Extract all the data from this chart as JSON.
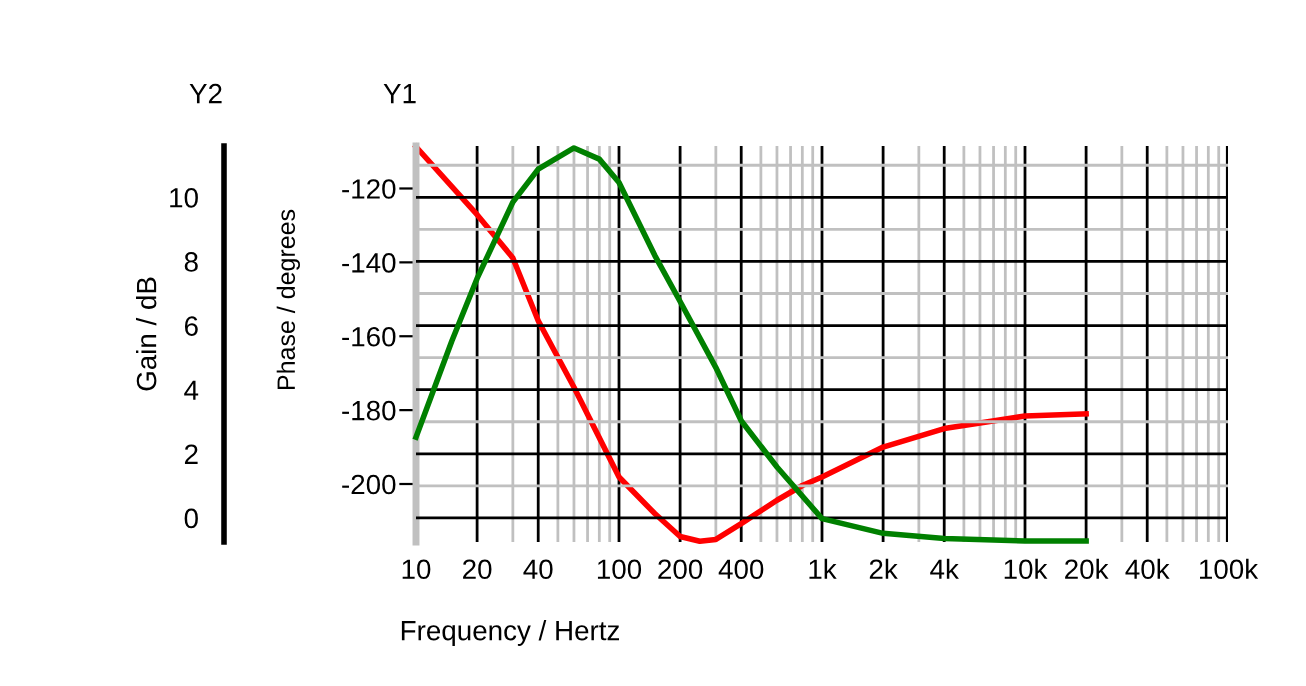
{
  "chart_data": {
    "type": "line",
    "xlabel": "Frequency / Hertz",
    "ylabel": "Phase / degrees",
    "y2label": "Gain / dB",
    "annotations": [
      "Y2",
      "Y1"
    ],
    "log": "x",
    "xlim": [
      10,
      100000
    ],
    "xticks": [
      10,
      20,
      40,
      100,
      200,
      400,
      {
        "value": 1000,
        "label": "1k"
      },
      {
        "value": 2000,
        "label": "2k"
      },
      {
        "value": 4000,
        "label": "4k"
      },
      {
        "value": 10000,
        "label": "10k"
      },
      {
        "value": 20000,
        "label": "20k"
      },
      {
        "value": 40000,
        "label": "40k"
      },
      {
        "value": 100000,
        "label": "100k"
      }
    ],
    "ylim": [
      -215.7,
      -108.5
    ],
    "yticks": [
      -120,
      -140,
      -160,
      -180,
      -200
    ],
    "y2lim": [
      -0.75,
      11.6
    ],
    "y2ticks": [
      0,
      2,
      4,
      6,
      8,
      10
    ],
    "grid": true,
    "legend": false,
    "line_style": "solid",
    "series": [
      {
        "color": "#ff0000",
        "x": [
          10,
          20,
          30,
          40,
          60,
          100,
          150,
          200,
          250,
          300,
          400,
          600,
          800,
          1000,
          2000,
          4000,
          10000,
          20000
        ],
        "values": [
          -108.7,
          -127.1,
          -138.8,
          -155.8,
          -173.8,
          -198.1,
          -208,
          -214.2,
          -215.5,
          -215,
          -210.7,
          -204.4,
          -200.4,
          -198.1,
          -190,
          -185,
          -181.6,
          -181
        ]
      },
      {
        "color": "#008000",
        "axis": "y2",
        "x": [
          10,
          15,
          20,
          30,
          40,
          60,
          80,
          100,
          150,
          200,
          300,
          400,
          600,
          1000,
          2000,
          4000,
          10000,
          20000
        ],
        "values": [
          2.52,
          5.51,
          7.47,
          9.85,
          10.88,
          11.54,
          11.19,
          10.46,
          8.19,
          6.75,
          4.69,
          3.03,
          1.59,
          -0.02,
          -0.48,
          -0.64,
          -0.72,
          -0.72
        ]
      }
    ]
  }
}
